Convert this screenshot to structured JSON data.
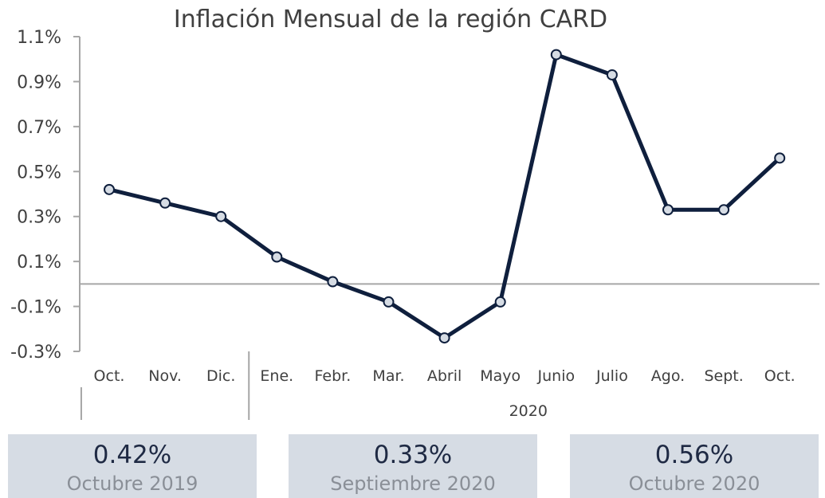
{
  "chart_data": {
    "type": "line",
    "title": "Inflación Mensual de la región CARD",
    "categories": [
      "Oct.",
      "Nov.",
      "Dic.",
      "Ene.",
      "Febr.",
      "Mar.",
      "Abril",
      "Mayo",
      "Junio",
      "Julio",
      "Ago.",
      "Sept.",
      "Oct."
    ],
    "groups": [
      {
        "label": "",
        "start": 0,
        "end": 2
      },
      {
        "label": "2020",
        "start": 3,
        "end": 12
      }
    ],
    "series": [
      {
        "values": [
          0.42,
          0.36,
          0.3,
          0.12,
          0.01,
          -0.08,
          -0.24,
          -0.08,
          1.02,
          0.93,
          0.33,
          0.33,
          0.56
        ]
      }
    ],
    "ylim": [
      -0.3,
      1.1
    ],
    "yticks": [
      "1.1%",
      "0.9%",
      "0.7%",
      "0.5%",
      "0.3%",
      "0.1%",
      "-0.1%",
      "-0.3%"
    ],
    "ytick_values": [
      1.1,
      0.9,
      0.7,
      0.5,
      0.3,
      0.1,
      -0.1,
      -0.3
    ],
    "zero_line": true,
    "line_color": "#0f1f3d",
    "marker_fill": "#d6dce4"
  },
  "cards": [
    {
      "value": "0.42%",
      "label": "Octubre 2019"
    },
    {
      "value": "0.33%",
      "label": "Septiembre 2020"
    },
    {
      "value": "0.56%",
      "label": "Octubre 2020"
    }
  ]
}
